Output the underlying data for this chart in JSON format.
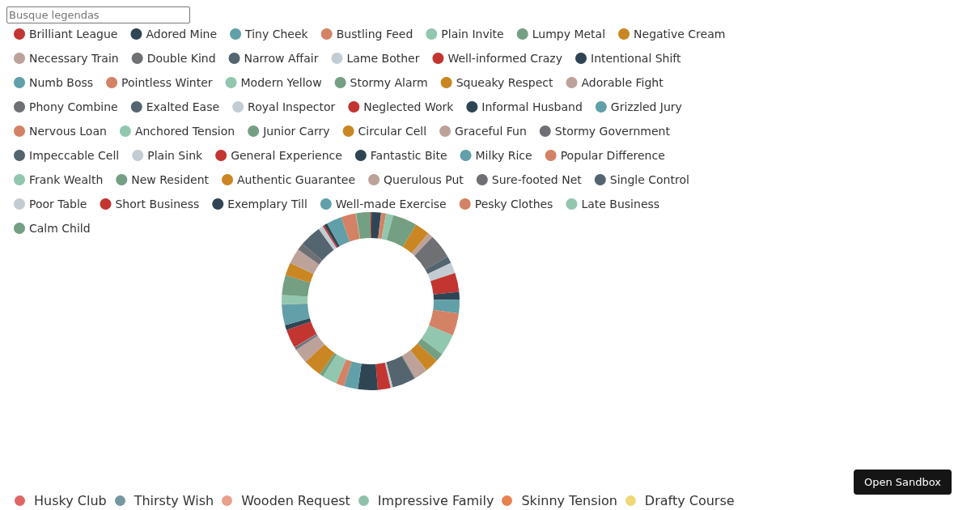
{
  "chart_data": [
    {
      "type": "donut",
      "legend": "top",
      "categories": [
        "Brilliant League",
        "Adored Mine",
        "Tiny Cheek",
        "Bustling Feed",
        "Plain Invite",
        "Lumpy Metal",
        "Negative Cream",
        "Necessary Train",
        "Double Kind",
        "Narrow Affair",
        "Lame Bother",
        "Well-informed Crazy",
        "Intentional Shift",
        "Numb Boss",
        "Pointless Winter",
        "Modern Yellow",
        "Stormy Alarm",
        "Squeaky Respect",
        "Adorable Fight",
        "Phony Combine",
        "Exalted Ease",
        "Royal Inspector",
        "Neglected Work",
        "Informal Husband",
        "Grizzled Jury",
        "Nervous Loan",
        "Anchored Tension",
        "Junior Carry",
        "Circular Cell",
        "Graceful Fun",
        "Stormy Government",
        "Impeccable Cell",
        "Plain Sink",
        "General Experience",
        "Fantastic Bite",
        "Milky Rice",
        "Popular Difference",
        "Frank Wealth",
        "New Resident",
        "Authentic Guarantee",
        "Querulous Put",
        "Sure-footed Net",
        "Single Control",
        "Poor Table",
        "Short Business",
        "Exemplary Till",
        "Well-made Exercise",
        "Pesky Clothes",
        "Late Business",
        "Calm Child"
      ],
      "values": [
        0.17,
        1.72,
        0.03,
        0.86,
        1.33,
        4.42,
        2.72,
        0.97,
        4.44,
        1.28,
        1.94,
        3.44,
        1.39,
        2.5,
        4.06,
        3.86,
        1.53,
        2.5,
        2.5,
        0.11,
        4.22,
        0.39,
        2.31,
        3.61,
        2.53,
        1.5,
        2.67,
        0.67,
        3.39,
        2.72,
        0.22,
        0.28,
        0.06,
        3.39,
        0.92,
        3.72,
        0.06,
        1.69,
        3.61,
        2.33,
        2.78,
        1.28,
        3.97,
        0.86,
        0.31,
        0.61,
        2.75,
        2.69,
        0.08,
        2.61
      ],
      "colors": [
        "#c23531",
        "#2f4554",
        "#61a0a8",
        "#d48265",
        "#91c7ae",
        "#749f83",
        "#ca8622",
        "#bda29a",
        "#6e7074",
        "#546570",
        "#c4ccd3",
        "#c23531",
        "#2f4554",
        "#61a0a8",
        "#d48265",
        "#91c7ae",
        "#749f83",
        "#ca8622",
        "#bda29a",
        "#6e7074",
        "#546570",
        "#c4ccd3",
        "#c23531",
        "#2f4554",
        "#61a0a8",
        "#d48265",
        "#91c7ae",
        "#749f83",
        "#ca8622",
        "#bda29a",
        "#6e7074",
        "#546570",
        "#c4ccd3",
        "#c23531",
        "#2f4554",
        "#61a0a8",
        "#d48265",
        "#91c7ae",
        "#749f83",
        "#ca8622",
        "#bda29a",
        "#6e7074",
        "#546570",
        "#c4ccd3",
        "#c23531",
        "#2f4554",
        "#61a0a8",
        "#d48265",
        "#91c7ae",
        "#749f83"
      ]
    },
    {
      "type": "other",
      "categories": [
        "Husky Club",
        "Thirsty Wish",
        "Wooden Request",
        "Impressive Family",
        "Skinny Tension",
        "Drafty Course"
      ],
      "colors": [
        "#e06666",
        "#76979f",
        "#e8a08a",
        "#8fc1a9",
        "#e8804f",
        "#f0d878"
      ],
      "annotations": [
        "Busque legendas",
        "Open Sandbox"
      ]
    }
  ]
}
